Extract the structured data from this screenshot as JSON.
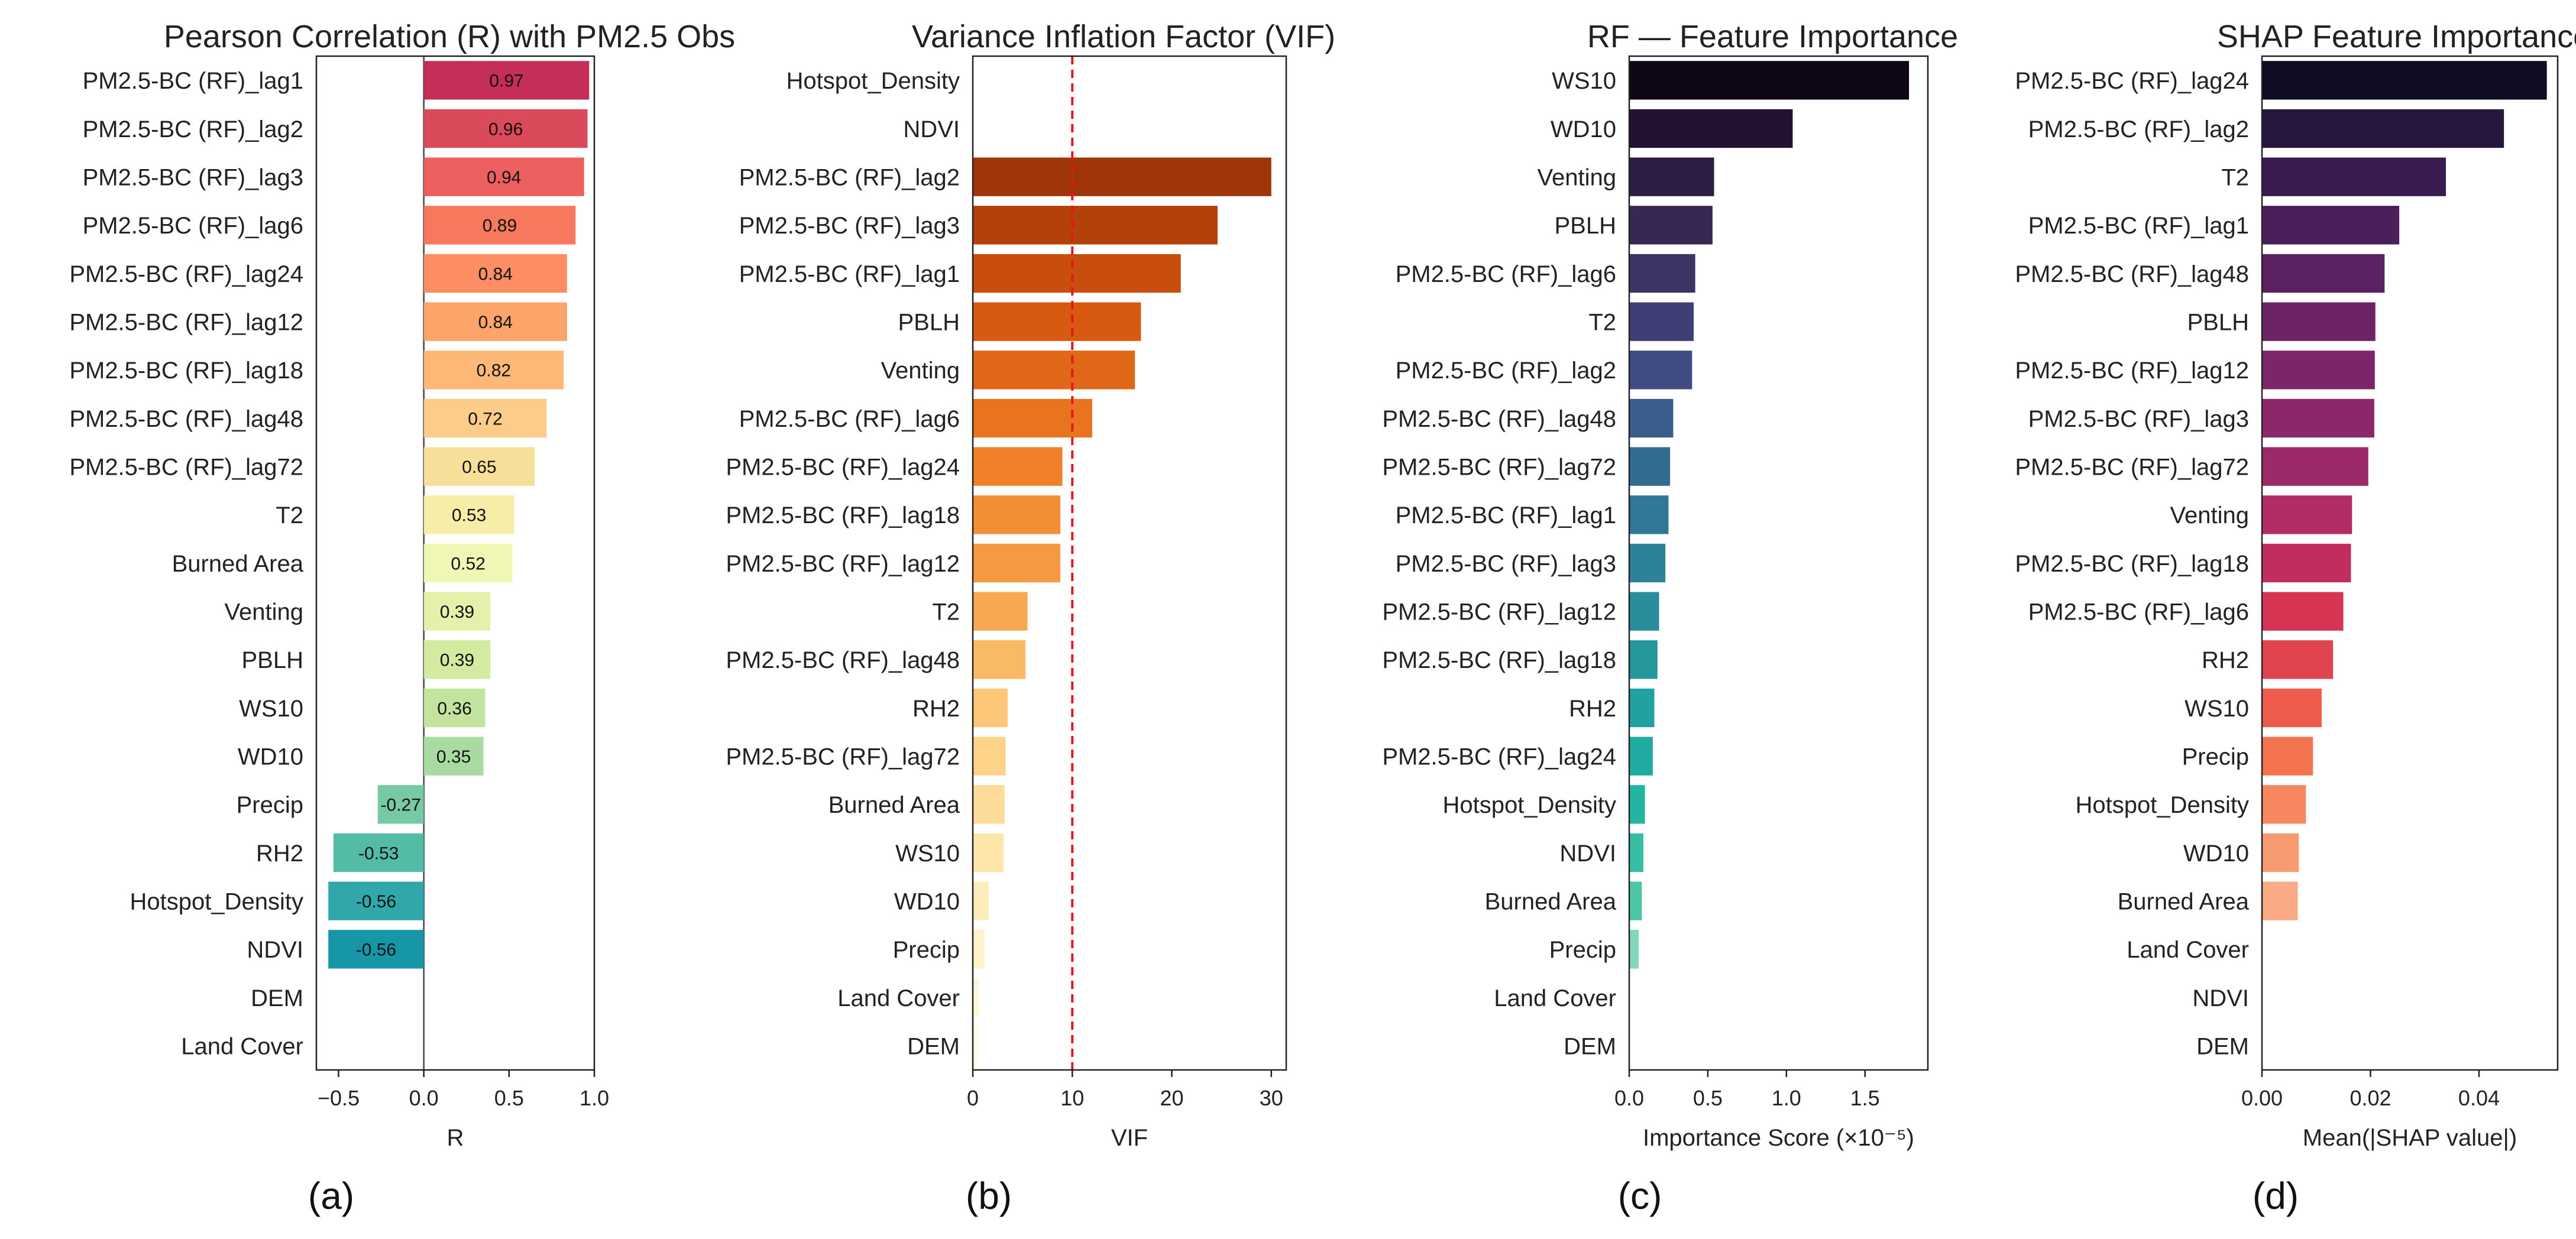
{
  "chart_data": [
    {
      "id": "a",
      "type": "bar",
      "orientation": "horizontal",
      "title": "Pearson Correlation (R) with PM2.5 Obs",
      "xlabel": "R",
      "caption": "(a)",
      "xlim": [
        -0.63,
        1.0
      ],
      "xticks": [
        -0.5,
        0.0,
        0.5,
        1.0
      ],
      "xtick_labels": [
        "−0.5",
        "0.0",
        "0.5",
        "1.0"
      ],
      "zero_line": true,
      "value_labels": true,
      "categories": [
        "PM2.5-BC (RF)_lag1",
        "PM2.5-BC (RF)_lag2",
        "PM2.5-BC (RF)_lag3",
        "PM2.5-BC (RF)_lag6",
        "PM2.5-BC (RF)_lag24",
        "PM2.5-BC (RF)_lag12",
        "PM2.5-BC (RF)_lag18",
        "PM2.5-BC (RF)_lag48",
        "PM2.5-BC (RF)_lag72",
        "T2",
        "Burned Area",
        "Venting",
        "PBLH",
        "WS10",
        "WD10",
        "Precip",
        "RH2",
        "Hotspot_Density",
        "NDVI",
        "DEM",
        "Land Cover"
      ],
      "values": [
        0.97,
        0.96,
        0.94,
        0.89,
        0.84,
        0.84,
        0.82,
        0.72,
        0.65,
        0.53,
        0.52,
        0.39,
        0.39,
        0.36,
        0.35,
        -0.27,
        -0.53,
        -0.56,
        -0.56,
        null,
        null
      ],
      "value_text": [
        "0.97",
        "0.96",
        "0.94",
        "0.89",
        "0.84",
        "0.84",
        "0.82",
        "0.72",
        "0.65",
        "0.53",
        "0.52",
        "0.39",
        "0.39",
        "0.36",
        "0.35",
        "-0.27",
        "-0.53",
        "-0.56",
        "-0.56",
        "",
        ""
      ],
      "colors": [
        "#C42E57",
        "#DA4A5B",
        "#EC6060",
        "#F6795E",
        "#FD8E63",
        "#FDA46A",
        "#FDB877",
        "#FDCC88",
        "#F8DF99",
        "#F6EDA7",
        "#F0F6B3",
        "#E3F1AA",
        "#D3EBA1",
        "#C2E49E",
        "#A9DAA1",
        "#77C9A5",
        "#54BBA7",
        "#2FA7AB",
        "#1696A7",
        "#ffffff",
        "#ffffff"
      ]
    },
    {
      "id": "b",
      "type": "bar",
      "orientation": "horizontal",
      "title": "Variance Inflation Factor (VIF)",
      "xlabel": "VIF",
      "caption": "(b)",
      "xlim": [
        0,
        31.5
      ],
      "xticks": [
        0,
        10,
        20,
        30
      ],
      "xtick_labels": [
        "0",
        "10",
        "20",
        "30"
      ],
      "reference_line": 10,
      "reference_color": "#E8141E",
      "categories": [
        "Hotspot_Density",
        "NDVI",
        "PM2.5-BC (RF)_lag2",
        "PM2.5-BC (RF)_lag3",
        "PM2.5-BC (RF)_lag1",
        "PBLH",
        "Venting",
        "PM2.5-BC (RF)_lag6",
        "PM2.5-BC (RF)_lag24",
        "PM2.5-BC (RF)_lag18",
        "PM2.5-BC (RF)_lag12",
        "T2",
        "PM2.5-BC (RF)_lag48",
        "RH2",
        "PM2.5-BC (RF)_lag72",
        "Burned Area",
        "WS10",
        "WD10",
        "Precip",
        "Land Cover",
        "DEM"
      ],
      "values": [
        null,
        null,
        30.0,
        24.6,
        20.9,
        16.9,
        16.3,
        12.0,
        9.0,
        8.8,
        8.8,
        5.5,
        5.3,
        3.5,
        3.3,
        3.2,
        3.1,
        1.6,
        1.2,
        0.6,
        0.5
      ],
      "colors": [
        "#ffffff",
        "#ffffff",
        "#9F3508",
        "#B5410A",
        "#C94E0D",
        "#D75A10",
        "#E06618",
        "#E97420",
        "#F0812A",
        "#F38D36",
        "#F59A40",
        "#F8A950",
        "#FAB963",
        "#FCC777",
        "#FDD389",
        "#FDDC99",
        "#FEE6AB",
        "#FEEDBB",
        "#FFF3CA",
        "#FFF7D8",
        "#FFFAE4"
      ]
    },
    {
      "id": "c",
      "type": "bar",
      "orientation": "horizontal",
      "title": "RF — Feature Importance",
      "xlabel": "Importance Score (×10⁻⁵)",
      "caption": "(c)",
      "xlim": [
        0,
        1.9
      ],
      "xticks": [
        0.0,
        0.5,
        1.0,
        1.5
      ],
      "xtick_labels": [
        "0.0",
        "0.5",
        "1.0",
        "1.5"
      ],
      "categories": [
        "WS10",
        "WD10",
        "Venting",
        "PBLH",
        "PM2.5-BC (RF)_lag6",
        "T2",
        "PM2.5-BC (RF)_lag2",
        "PM2.5-BC (RF)_lag48",
        "PM2.5-BC (RF)_lag72",
        "PM2.5-BC (RF)_lag1",
        "PM2.5-BC (RF)_lag3",
        "PM2.5-BC (RF)_lag12",
        "PM2.5-BC (RF)_lag18",
        "RH2",
        "PM2.5-BC (RF)_lag24",
        "Hotspot_Density",
        "NDVI",
        "Burned Area",
        "Precip",
        "Land Cover",
        "DEM"
      ],
      "values": [
        1.78,
        1.04,
        0.54,
        0.53,
        0.42,
        0.41,
        0.4,
        0.28,
        0.26,
        0.25,
        0.23,
        0.19,
        0.18,
        0.16,
        0.15,
        0.1,
        0.09,
        0.08,
        0.06,
        0.0,
        0.0
      ],
      "colors": [
        "#0F0715",
        "#221130",
        "#2E1D42",
        "#362852",
        "#3B3464",
        "#3F3F75",
        "#3F4B82",
        "#395E8C",
        "#346B91",
        "#317796",
        "#2D8299",
        "#298D9C",
        "#25989E",
        "#21A2A0",
        "#1FABA1",
        "#22B5A1",
        "#35BEA3",
        "#4DC6A7",
        "#82D6BC",
        "#ffffff",
        "#ffffff"
      ]
    },
    {
      "id": "d",
      "type": "bar",
      "orientation": "horizontal",
      "title": "SHAP Feature Importance",
      "xlabel": "Mean(|SHAP value|)",
      "caption": "(d)",
      "xlim": [
        0,
        0.0545
      ],
      "xticks": [
        0.0,
        0.02,
        0.04
      ],
      "xtick_labels": [
        "0.00",
        "0.02",
        "0.04"
      ],
      "categories": [
        "PM2.5-BC (RF)_lag24",
        "PM2.5-BC (RF)_lag2",
        "T2",
        "PM2.5-BC (RF)_lag1",
        "PM2.5-BC (RF)_lag48",
        "PBLH",
        "PM2.5-BC (RF)_lag12",
        "PM2.5-BC (RF)_lag3",
        "PM2.5-BC (RF)_lag72",
        "Venting",
        "PM2.5-BC (RF)_lag18",
        "PM2.5-BC (RF)_lag6",
        "RH2",
        "WS10",
        "Precip",
        "Hotspot_Density",
        "WD10",
        "Burned Area",
        "Land Cover",
        "NDVI",
        "DEM"
      ],
      "values": [
        0.0525,
        0.0446,
        0.0339,
        0.0253,
        0.0226,
        0.0209,
        0.0208,
        0.0207,
        0.0196,
        0.0166,
        0.0164,
        0.015,
        0.0131,
        0.011,
        0.0094,
        0.0081,
        0.0068,
        0.0066,
        0.0,
        0.0,
        0.0
      ],
      "colors": [
        "#100C23",
        "#27163D",
        "#3A1D50",
        "#4A1F5C",
        "#5B2162",
        "#6C2466",
        "#7C2669",
        "#8C286A",
        "#9C2A69",
        "#B22C65",
        "#C12E5E",
        "#D53453",
        "#E0444F",
        "#EC5B4C",
        "#F3744F",
        "#F6875F",
        "#F79C71",
        "#FAAA85",
        "#ffffff",
        "#ffffff",
        "#ffffff"
      ]
    }
  ]
}
